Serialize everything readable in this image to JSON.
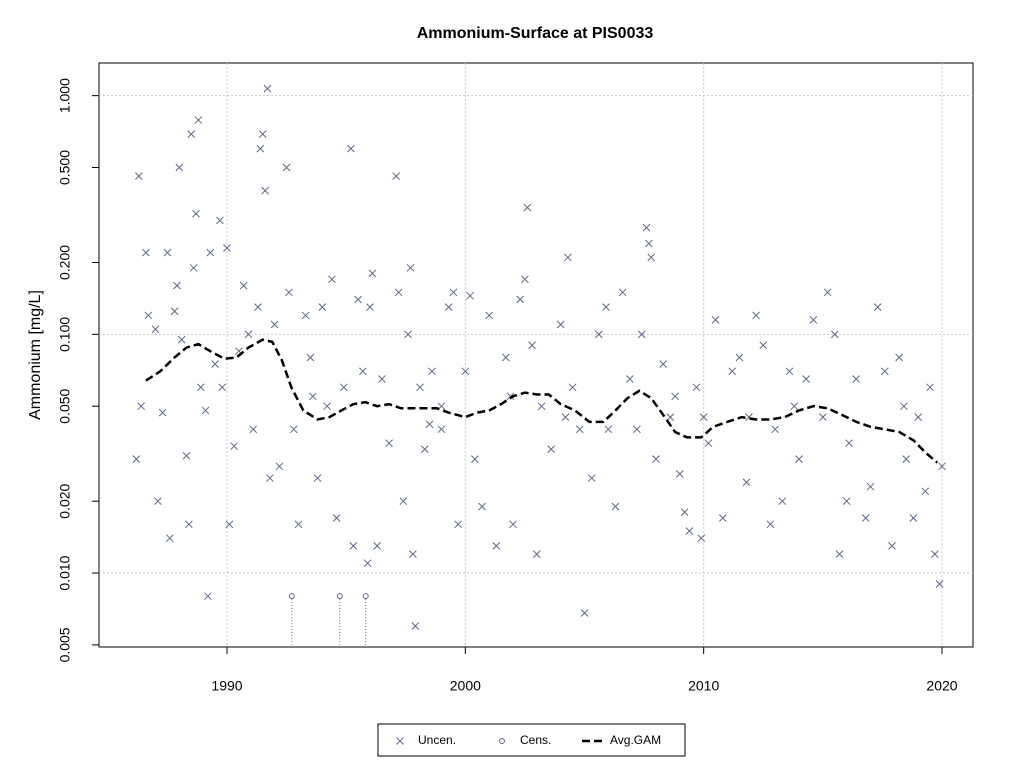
{
  "chart_data": {
    "type": "scatter",
    "title": "Ammonium-Surface at PIS0033",
    "y_label": "Ammonium [mg/L]",
    "log_y": true,
    "grid": true,
    "legend": "bottom",
    "xlim": [
      1984.63,
      2021.3
    ],
    "xticks": [
      1990,
      2000,
      2010,
      2020
    ],
    "ylim": [
      0.0049,
      1.37
    ],
    "yticks": [
      {
        "value": 0.005,
        "label": "0.005"
      },
      {
        "value": 0.01,
        "label": "0.010"
      },
      {
        "value": 0.02,
        "label": "0.020"
      },
      {
        "value": 0.05,
        "label": "0.050"
      },
      {
        "value": 0.1,
        "label": "0.100"
      },
      {
        "value": 0.2,
        "label": "0.200"
      },
      {
        "value": 0.5,
        "label": "0.500"
      },
      {
        "value": 1,
        "label": "1.000"
      }
    ],
    "series": [
      {
        "name": "Uncen.",
        "marker": "x",
        "color": "#5b6985",
        "x": [
          1986.2,
          1986.3,
          1986.4,
          1986.6,
          1986.7,
          1987,
          1987.1,
          1987.3,
          1987.5,
          1987.6,
          1987.8,
          1987.9,
          1988,
          1988.1,
          1988.3,
          1988.4,
          1988.5,
          1988.6,
          1988.7,
          1988.8,
          1988.9,
          1989.1,
          1989.2,
          1989.3,
          1989.5,
          1989.7,
          1989.8,
          1990,
          1990.1,
          1990.3,
          1990.5,
          1990.7,
          1990.9,
          1991.1,
          1991.3,
          1991.4,
          1991.5,
          1991.6,
          1991.7,
          1991.8,
          1992,
          1992.2,
          1992.5,
          1992.6,
          1992.8,
          1993,
          1993.3,
          1993.5,
          1993.8,
          1994,
          1994.4,
          1994.6,
          1994.9,
          1995.2,
          1995.3,
          1995.5,
          1995.7,
          1995.9,
          1996,
          1996.1,
          1996.3,
          1996.5,
          1996.8,
          1997.1,
          1997.2,
          1997.4,
          1997.6,
          1997.7,
          1997.8,
          1997.9,
          1998.1,
          1998.3,
          1998.6,
          1999,
          1999.3,
          1999.5,
          1999.7,
          2000,
          2000.2,
          2000.4,
          2000.7,
          2001,
          2001.3,
          2001.7,
          2002,
          2002.3,
          2002.5,
          2002.6,
          2002.8,
          2003,
          2003.2,
          2003.6,
          2004,
          2004.3,
          2004.5,
          2004.8,
          2005,
          2005.3,
          2005.6,
          2005.9,
          2006.3,
          2006.6,
          2006.9,
          2007.2,
          2007.4,
          2007.6,
          2007.7,
          2007.8,
          2008,
          2008.3,
          2008.6,
          2009,
          2009.2,
          2009.4,
          2009.7,
          2009.9,
          2010.2,
          2010.5,
          2010.8,
          2011.2,
          2011.5,
          2011.8,
          2012.2,
          2012.5,
          2012.8,
          2013,
          2013.3,
          2013.6,
          2014,
          2014.3,
          2014.6,
          2015,
          2015.2,
          2015.5,
          2015.7,
          2016,
          2016.4,
          2016.8,
          2017,
          2017.3,
          2017.6,
          2017.9,
          2018.2,
          2018.5,
          2018.8,
          2019,
          2019.3,
          2019.5,
          2019.7,
          2019.9,
          2020,
          2011.9,
          2013.8,
          2016.1,
          2018.4,
          2010,
          2008.8,
          2006,
          2004.2,
          2001.9,
          1999,
          1998.5,
          1994.2,
          1993.6
        ],
        "values": [
          0.03,
          0.46,
          0.05,
          0.22,
          0.12,
          0.105,
          0.02,
          0.047,
          0.22,
          0.014,
          0.125,
          0.16,
          0.5,
          0.095,
          0.031,
          0.016,
          0.69,
          0.19,
          0.32,
          0.79,
          0.06,
          0.048,
          0.008,
          0.22,
          0.075,
          0.3,
          0.06,
          0.23,
          0.016,
          0.034,
          0.085,
          0.16,
          0.1,
          0.04,
          0.13,
          0.6,
          0.69,
          0.4,
          1.07,
          0.025,
          0.11,
          0.028,
          0.5,
          0.15,
          0.04,
          0.016,
          0.12,
          0.08,
          0.025,
          0.13,
          0.17,
          0.017,
          0.06,
          0.6,
          0.013,
          0.14,
          0.07,
          0.011,
          0.13,
          0.18,
          0.013,
          0.065,
          0.035,
          0.46,
          0.15,
          0.02,
          0.1,
          0.19,
          0.012,
          0.006,
          0.06,
          0.033,
          0.07,
          0.04,
          0.13,
          0.15,
          0.016,
          0.07,
          0.145,
          0.03,
          0.019,
          0.12,
          0.013,
          0.08,
          0.016,
          0.14,
          0.17,
          0.34,
          0.09,
          0.012,
          0.05,
          0.033,
          0.11,
          0.21,
          0.06,
          0.04,
          0.0068,
          0.025,
          0.1,
          0.13,
          0.019,
          0.15,
          0.065,
          0.04,
          0.1,
          0.28,
          0.24,
          0.21,
          0.03,
          0.075,
          0.045,
          0.026,
          0.018,
          0.015,
          0.06,
          0.014,
          0.035,
          0.115,
          0.017,
          0.07,
          0.08,
          0.024,
          0.12,
          0.09,
          0.016,
          0.04,
          0.02,
          0.07,
          0.03,
          0.065,
          0.115,
          0.045,
          0.15,
          0.1,
          0.012,
          0.02,
          0.065,
          0.017,
          0.023,
          0.13,
          0.07,
          0.013,
          0.08,
          0.03,
          0.017,
          0.045,
          0.022,
          0.06,
          0.012,
          0.009,
          0.028,
          0.045,
          0.05,
          0.035,
          0.05,
          0.045,
          0.055,
          0.04,
          0.045,
          0.055,
          0.05,
          0.042,
          0.05,
          0.055
        ]
      },
      {
        "name": "Cens.",
        "marker": "circle",
        "color": "#5b6985",
        "x": [
          1992.72,
          1994.73,
          1995.82
        ],
        "values": [
          0.008,
          0.008,
          0.008
        ]
      },
      {
        "name": "Avg.GAM",
        "marker": "dashed-line",
        "color": "#000000",
        "x": [
          1986.6,
          1987.2,
          1987.8,
          1988.3,
          1988.8,
          1989.3,
          1989.9,
          1990.4,
          1990.9,
          1991.5,
          1991.9,
          1992.3,
          1992.7,
          1993.2,
          1993.8,
          1994.3,
          1994.8,
          1995.3,
          1995.8,
          1996.3,
          1996.8,
          1997.3,
          1998,
          1998.8,
          1999.3,
          2000,
          2000.5,
          2001,
          2001.5,
          2002,
          2002.5,
          2003,
          2003.5,
          2004,
          2004.6,
          2005.2,
          2005.8,
          2006.3,
          2006.8,
          2007.3,
          2007.8,
          2008.3,
          2008.8,
          2009.3,
          2009.9,
          2010.4,
          2011,
          2011.6,
          2012.2,
          2012.8,
          2013.4,
          2014,
          2014.6,
          2015.2,
          2015.8,
          2016.4,
          2017,
          2017.6,
          2018.2,
          2018.8,
          2019.3,
          2019.8
        ],
        "values": [
          0.064,
          0.07,
          0.08,
          0.088,
          0.091,
          0.085,
          0.079,
          0.08,
          0.088,
          0.095,
          0.093,
          0.078,
          0.06,
          0.048,
          0.044,
          0.045,
          0.048,
          0.051,
          0.052,
          0.05,
          0.051,
          0.049,
          0.049,
          0.049,
          0.047,
          0.045,
          0.047,
          0.048,
          0.051,
          0.055,
          0.057,
          0.056,
          0.056,
          0.051,
          0.048,
          0.043,
          0.043,
          0.048,
          0.054,
          0.058,
          0.054,
          0.046,
          0.039,
          0.037,
          0.037,
          0.041,
          0.043,
          0.045,
          0.044,
          0.044,
          0.045,
          0.048,
          0.05,
          0.049,
          0.046,
          0.043,
          0.041,
          0.04,
          0.039,
          0.036,
          0.032,
          0.029
        ]
      }
    ]
  }
}
